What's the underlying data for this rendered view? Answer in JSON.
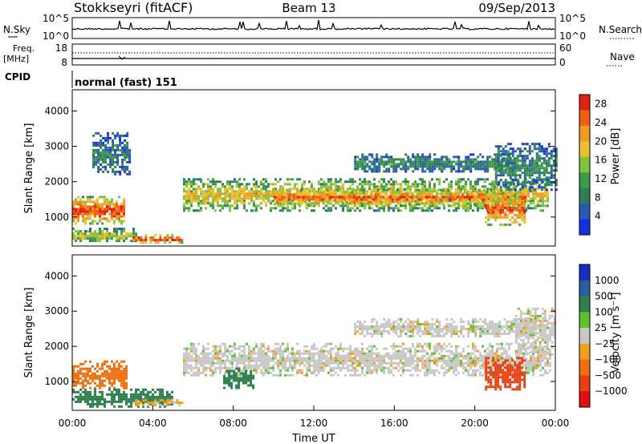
{
  "header": {
    "station": "Stokkseyri (fitACF)",
    "beam": "Beam 13",
    "date": "09/Sep/2013"
  },
  "panels": {
    "nsky": {
      "label": "N.Sky",
      "ticks_left": [
        "10^5",
        "10^0"
      ],
      "ticks_right": [
        "10^5",
        "10^0"
      ],
      "right_label": "N.Search"
    },
    "freq": {
      "label_top": "Freq.",
      "label_bottom": "[MHz]",
      "ticks_left": [
        "18",
        "8"
      ],
      "ticks_right": [
        "60",
        "0"
      ],
      "right_label": "Nave"
    },
    "cpid": {
      "label": "CPID",
      "value": "normal (fast) 151"
    }
  },
  "colors": {
    "power_scale": [
      "#1530e0",
      "#2a58b4",
      "#2e7d5a",
      "#3c9a4a",
      "#7fc43c",
      "#e8c030",
      "#f59a20",
      "#f06010",
      "#e02010"
    ],
    "velocity_scale": [
      "#1830c0",
      "#2a60a0",
      "#2e8050",
      "#60c030",
      "#c8c8c8",
      "#f0a020",
      "#f07010",
      "#e84010",
      "#e01010"
    ]
  },
  "chart_data": [
    {
      "type": "heatmap",
      "name": "power",
      "ylabel": "Slant Range [km]",
      "ylim": [
        180,
        4600
      ],
      "yticks": [
        "1000",
        "2000",
        "3000",
        "4000"
      ],
      "xlim": [
        0,
        24
      ],
      "colorbar": {
        "label": "Power [dB]",
        "ticks": [
          "4",
          "8",
          "12",
          "16",
          "20",
          "24",
          "28"
        ],
        "range": [
          0,
          30
        ]
      },
      "regions": [
        {
          "t": [
            0.0,
            2.6
          ],
          "r": [
            800,
            1600
          ],
          "level": 0.85
        },
        {
          "t": [
            0.0,
            3.2
          ],
          "r": [
            300,
            700
          ],
          "level": 0.55
        },
        {
          "t": [
            3.0,
            5.4
          ],
          "r": [
            300,
            520
          ],
          "level": 0.9
        },
        {
          "t": [
            5.5,
            23.6
          ],
          "r": [
            1200,
            2100
          ],
          "level": 0.6
        },
        {
          "t": [
            10.0,
            22.5
          ],
          "r": [
            1350,
            1800
          ],
          "level": 0.8
        },
        {
          "t": [
            14.0,
            22.0
          ],
          "r": [
            2300,
            2800
          ],
          "level": 0.3
        },
        {
          "t": [
            20.5,
            22.5
          ],
          "r": [
            800,
            1700
          ],
          "level": 0.8
        },
        {
          "t": [
            1.0,
            2.8
          ],
          "r": [
            2200,
            3400
          ],
          "level": 0.25
        },
        {
          "t": [
            21.0,
            24.0
          ],
          "r": [
            1800,
            3100
          ],
          "level": 0.3
        }
      ]
    },
    {
      "type": "heatmap",
      "name": "velocity",
      "ylabel": "Slant Range [km]",
      "xlabel": "Time UT",
      "ylim": [
        180,
        4600
      ],
      "yticks": [
        "1000",
        "2000",
        "3000",
        "4000"
      ],
      "xticks": [
        "00:00",
        "04:00",
        "08:00",
        "12:00",
        "16:00",
        "20:00",
        "00:00"
      ],
      "xlim": [
        0,
        24
      ],
      "colorbar": {
        "label": "Velocity [m s⁻¹]",
        "ticks": [
          "1000",
          "500",
          "100",
          "25",
          "−25",
          "−100",
          "−500",
          "−1000"
        ]
      },
      "regions": [
        {
          "t": [
            0.0,
            2.7
          ],
          "r": [
            800,
            1600
          ],
          "v": -150
        },
        {
          "t": [
            0.0,
            5.0
          ],
          "r": [
            300,
            800
          ],
          "v": 90
        },
        {
          "t": [
            3.0,
            5.4
          ],
          "r": [
            300,
            500
          ],
          "v": -40
        },
        {
          "t": [
            5.5,
            23.7
          ],
          "r": [
            1200,
            2100
          ],
          "v": 0
        },
        {
          "t": [
            14.0,
            23.0
          ],
          "r": [
            2300,
            2800
          ],
          "v": 0
        },
        {
          "t": [
            20.5,
            22.5
          ],
          "r": [
            800,
            1700
          ],
          "v": -600
        },
        {
          "t": [
            22.0,
            24.0
          ],
          "r": [
            1800,
            3100
          ],
          "v": 0
        },
        {
          "t": [
            7.5,
            9.0
          ],
          "r": [
            800,
            1400
          ],
          "v": 150
        }
      ]
    }
  ]
}
